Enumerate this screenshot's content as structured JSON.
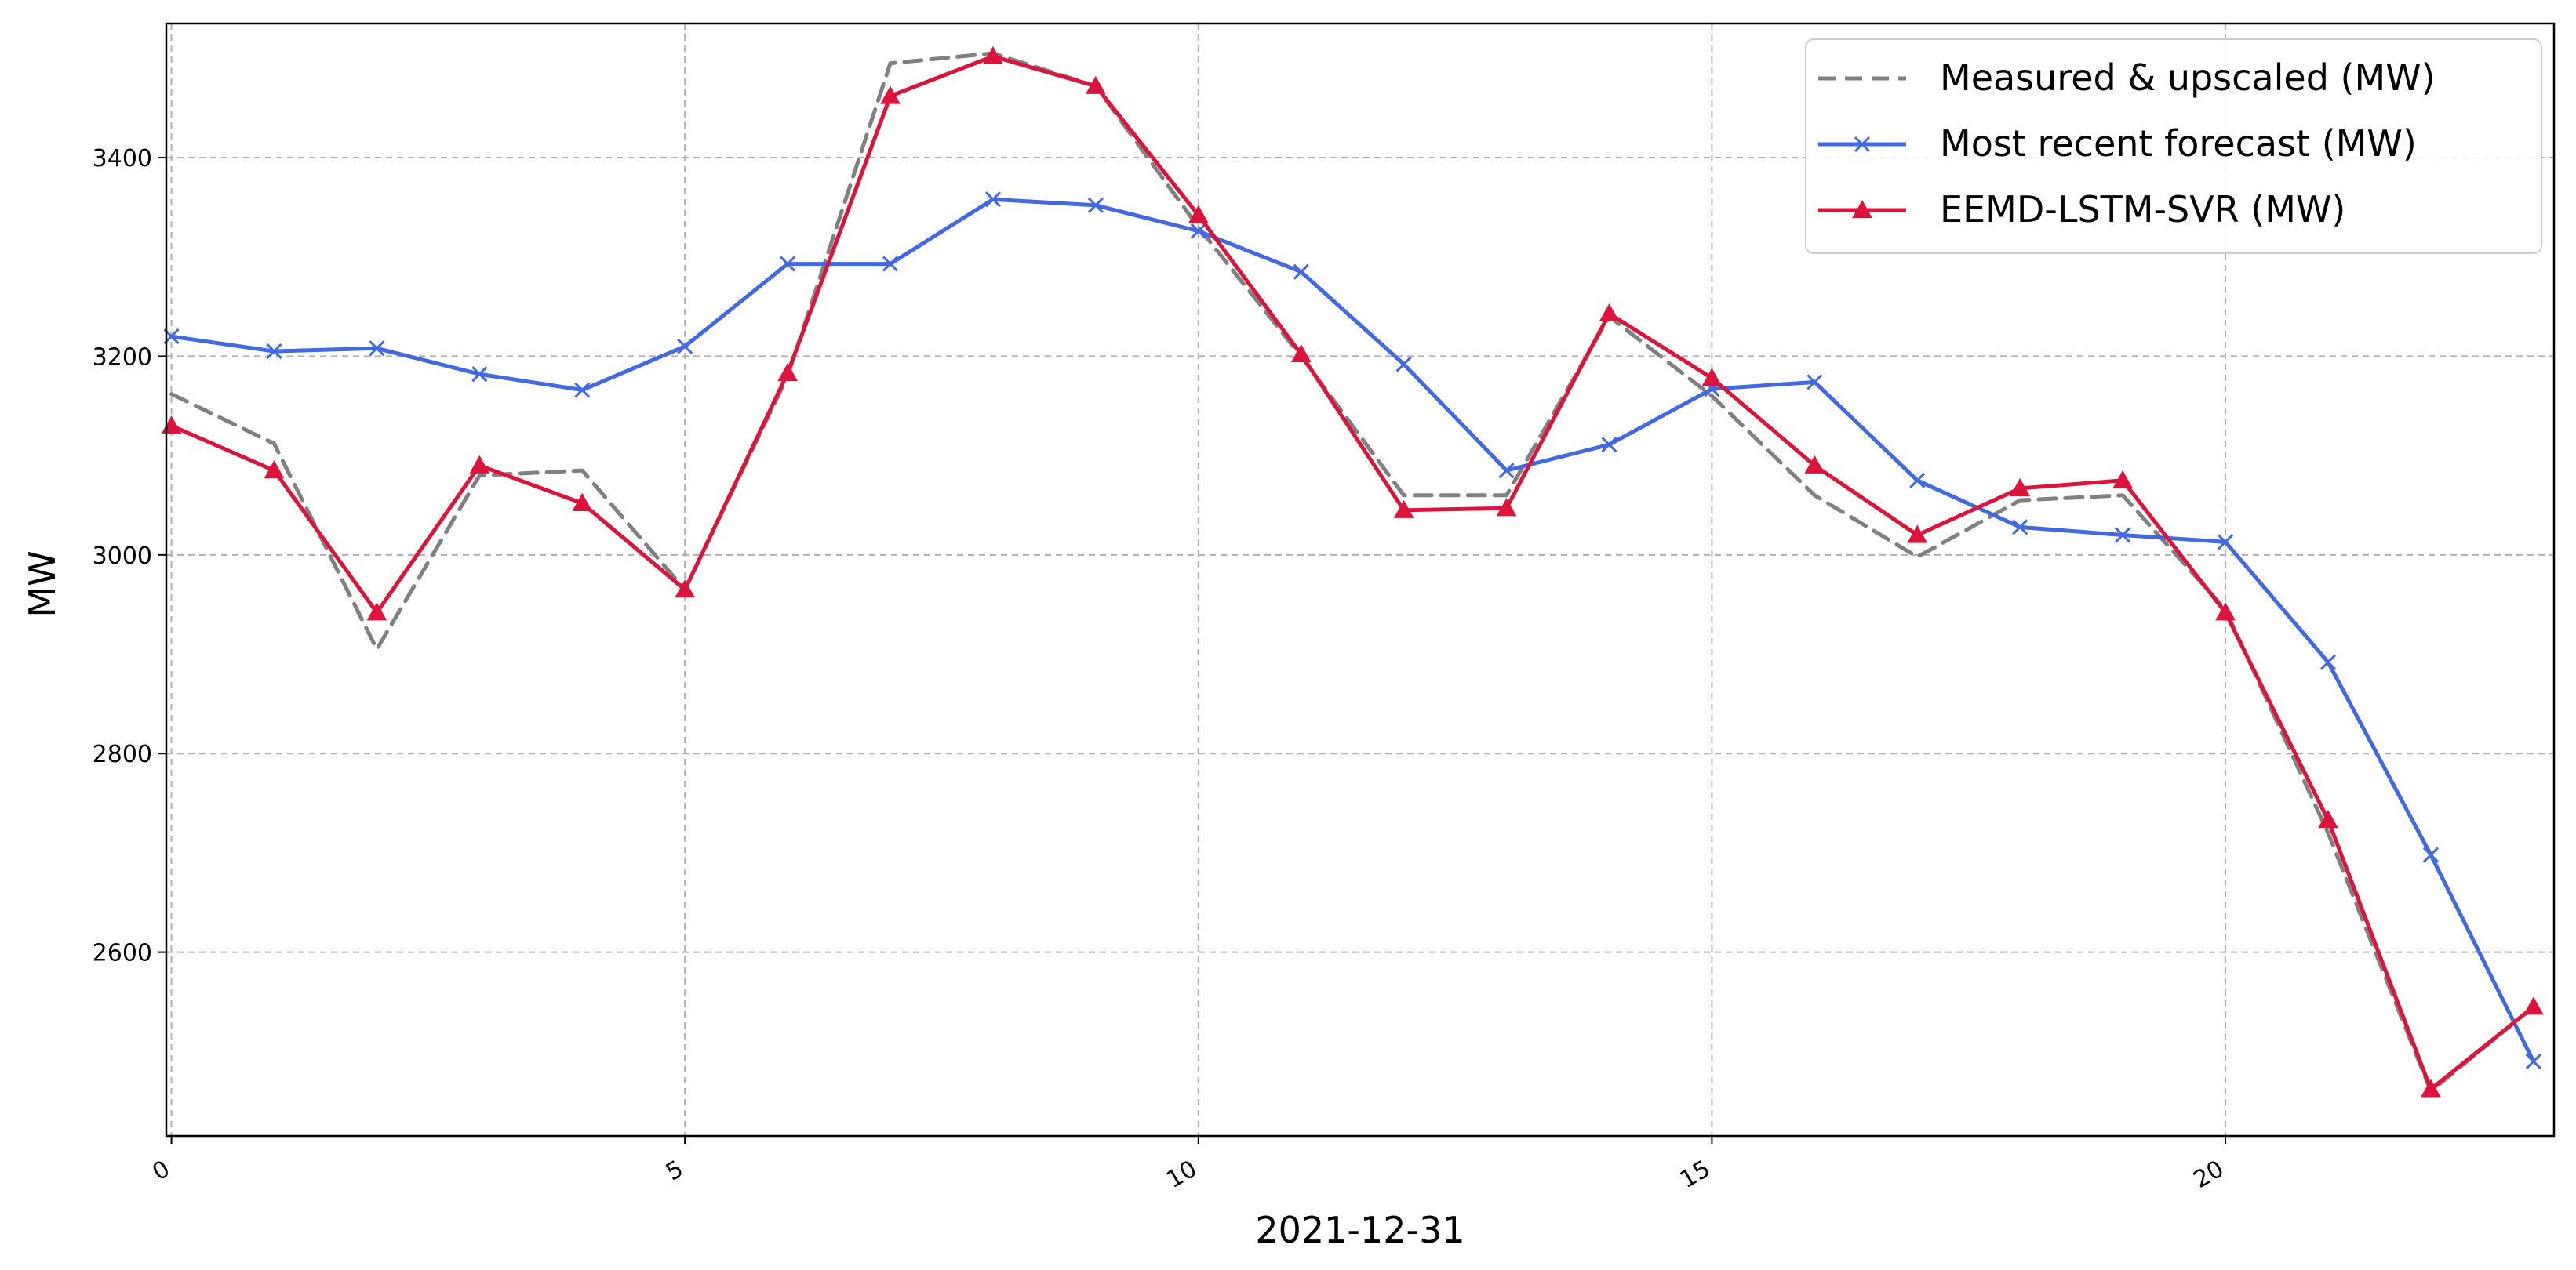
{
  "chart_data": {
    "type": "line",
    "title": "",
    "xlabel": "2021-12-31",
    "ylabel": "MW",
    "xlim": [
      -0.05,
      23.2
    ],
    "ylim": [
      2415,
      3535
    ],
    "xticks": [
      0,
      5,
      10,
      15,
      20
    ],
    "yticks": [
      2600,
      2800,
      3000,
      3200,
      3400
    ],
    "grid": true,
    "legend_position": "top-right",
    "x": [
      0,
      1,
      2,
      3,
      4,
      5,
      6,
      7,
      8,
      9,
      10,
      11,
      12,
      13,
      14,
      15,
      16,
      17,
      18,
      19,
      20,
      21,
      22,
      23
    ],
    "series": [
      {
        "name": "Measured & upscaled (MW)",
        "color": "#808080",
        "style": "dashed",
        "marker": "none",
        "values": [
          3162,
          3112,
          2905,
          3080,
          3085,
          2965,
          3180,
          3495,
          3505,
          3472,
          3330,
          3200,
          3060,
          3060,
          3240,
          3160,
          3060,
          2998,
          3055,
          3060,
          2945,
          2720,
          2460,
          2545
        ]
      },
      {
        "name": "Most recent forecast (MW)",
        "color": "#4169e1",
        "style": "solid",
        "marker": "x",
        "values": [
          3220,
          3205,
          3208,
          3182,
          3166,
          3210,
          3293,
          3293,
          3358,
          3352,
          3326,
          3285,
          3192,
          3085,
          3111,
          3167,
          3174,
          3075,
          3028,
          3020,
          3013,
          2892,
          2698,
          2490
        ]
      },
      {
        "name": "EEMD-LSTM-SVR (MW)",
        "color": "#dc143c",
        "style": "solid",
        "marker": "triangle",
        "values": [
          3130,
          3085,
          2942,
          3090,
          3052,
          2965,
          3183,
          3462,
          3502,
          3472,
          3342,
          3202,
          3045,
          3047,
          3243,
          3178,
          3090,
          3020,
          3067,
          3075,
          2942,
          2733,
          2462,
          2545
        ]
      }
    ]
  }
}
